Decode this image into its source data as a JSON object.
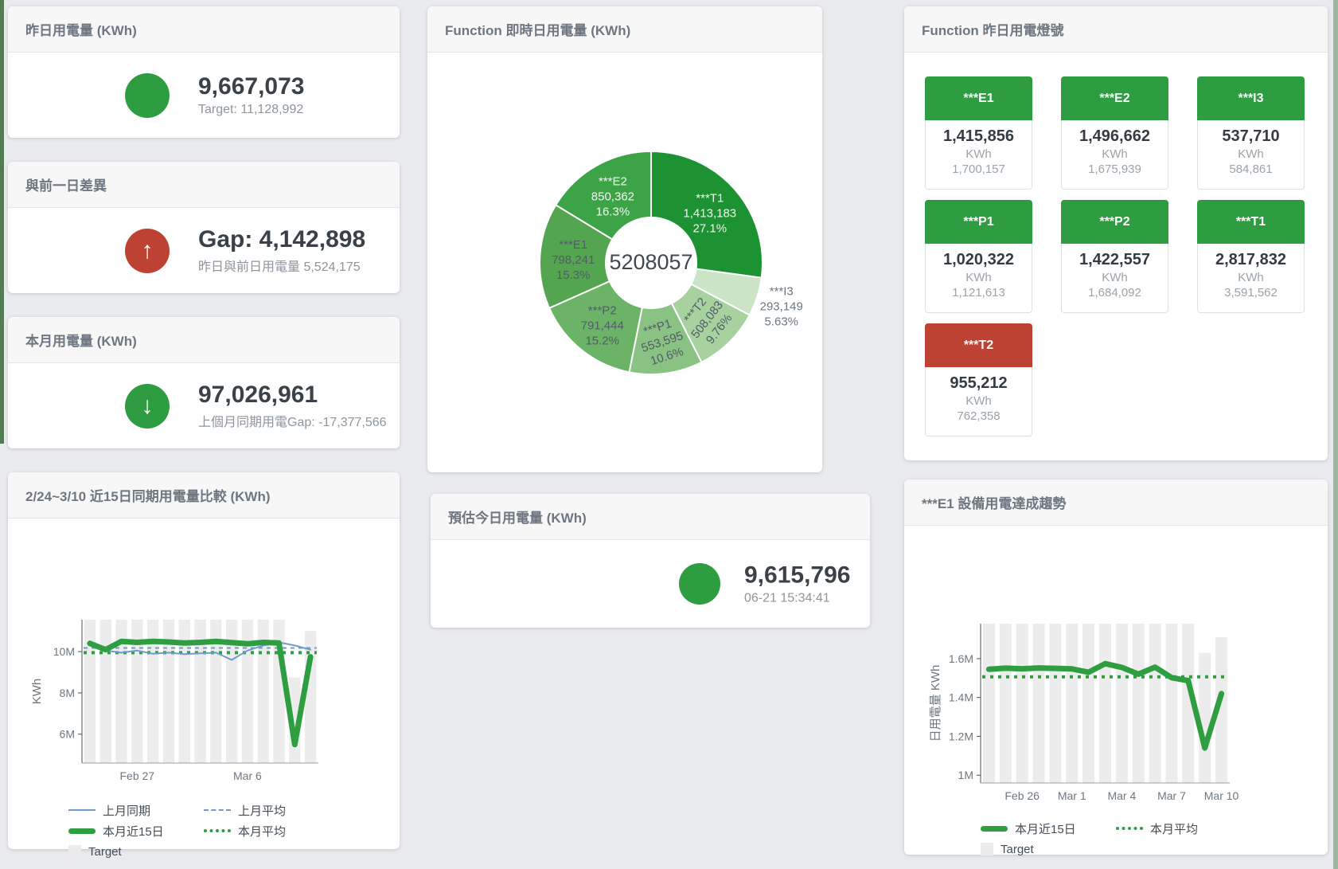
{
  "cards": {
    "yesterday": {
      "title": "昨日用電量 (KWh)",
      "value": "9,667,073",
      "subtitle": "Target: 11,128,992",
      "status_color": "#2e9d41"
    },
    "gap": {
      "title": "與前一日差異",
      "value": "Gap: 4,142,898",
      "subtitle": "昨日與前日用電量 5,524,175",
      "status_color": "#bd4234",
      "arrow": "↑"
    },
    "month": {
      "title": "本月用電量 (KWh)",
      "value": "97,026,961",
      "subtitle": "上個月同期用電Gap: -17,377,566",
      "status_color": "#2e9d41",
      "arrow": "↓"
    },
    "forecast": {
      "title": "預估今日用電量 (KWh)",
      "value": "9,615,796",
      "subtitle": "06-21 15:34:41",
      "status_color": "#2e9d41"
    }
  },
  "lights": {
    "title": "Function 昨日用電燈號",
    "unit": "KWh",
    "tiles": [
      {
        "label": "***E1",
        "value": "1,415,856",
        "unit": "KWh",
        "target": "1,700,157",
        "status": "green"
      },
      {
        "label": "***E2",
        "value": "1,496,662",
        "unit": "KWh",
        "target": "1,675,939",
        "status": "green"
      },
      {
        "label": "***I3",
        "value": "537,710",
        "unit": "KWh",
        "target": "584,861",
        "status": "green"
      },
      {
        "label": "***P1",
        "value": "1,020,322",
        "unit": "KWh",
        "target": "1,121,613",
        "status": "green"
      },
      {
        "label": "***P2",
        "value": "1,422,557",
        "unit": "KWh",
        "target": "1,684,092",
        "status": "green"
      },
      {
        "label": "***T1",
        "value": "2,817,832",
        "unit": "KWh",
        "target": "3,591,562",
        "status": "green"
      },
      {
        "label": "***T2",
        "value": "955,212",
        "unit": "KWh",
        "target": "762,358",
        "status": "red"
      }
    ],
    "status_colors": {
      "green": "#2e9d41",
      "red": "#bd4234"
    }
  },
  "chart_data": [
    {
      "type": "pie",
      "title": "Function 即時日用電量 (KWh)",
      "center_total": "5208057",
      "slices": [
        {
          "name": "***T1",
          "value": 1413183,
          "value_display": "1,413,183",
          "pct": "27.1%",
          "color": "#1d9232",
          "label_color": "#f2f7f2",
          "rotate": 0,
          "outside": false
        },
        {
          "name": "***I3",
          "value": 293149,
          "value_display": "293,149",
          "pct": "5.63%",
          "color": "#cbe5c6",
          "label_color": "#6d7780",
          "rotate": 0,
          "outside": true
        },
        {
          "name": "***T2",
          "value": 508083,
          "value_display": "508,083",
          "pct": "9.76%",
          "color": "#a7d2a0",
          "label_color": "#525c66",
          "rotate": -52,
          "outside": false
        },
        {
          "name": "***P1",
          "value": 553595,
          "value_display": "553,595",
          "pct": "10.6%",
          "color": "#89c283",
          "label_color": "#525c66",
          "rotate": -18,
          "outside": false
        },
        {
          "name": "***P2",
          "value": 791444,
          "value_display": "791,444",
          "pct": "15.2%",
          "color": "#6bb366",
          "label_color": "#525c66",
          "rotate": 0,
          "outside": false
        },
        {
          "name": "***E1",
          "value": 798241,
          "value_display": "798,241",
          "pct": "15.3%",
          "color": "#53a64f",
          "label_color": "#525c66",
          "rotate": 0,
          "outside": false
        },
        {
          "name": "***E2",
          "value": 850362,
          "value_display": "850,362",
          "pct": "16.3%",
          "color": "#3da347",
          "label_color": "#f2f7f2",
          "rotate": 0,
          "outside": false
        }
      ]
    },
    {
      "type": "line",
      "title": "2/24~3/10 近15日同期用電量比較 (KWh)",
      "ylabel": "KWh",
      "x_count": 15,
      "x_ticks": [
        {
          "i": 3,
          "label": "Feb 27"
        },
        {
          "i": 10,
          "label": "Mar 6"
        }
      ],
      "y_ticks": [
        {
          "v": 6000000,
          "label": "6M"
        },
        {
          "v": 8000000,
          "label": "8M"
        },
        {
          "v": 10000000,
          "label": "10M"
        }
      ],
      "y_domain": [
        4600000,
        11550000
      ],
      "bars": {
        "name": "Target",
        "color": "#ececec",
        "values": [
          11550000,
          11550000,
          11550000,
          11550000,
          11550000,
          11550000,
          11550000,
          11550000,
          11550000,
          11550000,
          11550000,
          11550000,
          11550000,
          8750000,
          11000000
        ]
      },
      "series": [
        {
          "name": "上月平均",
          "color": "#6f9bd2",
          "width": 2,
          "dash": "5 5",
          "constant": 10180000
        },
        {
          "name": "本月平均",
          "color": "#2f9e41",
          "width": 4,
          "dash": "4 6",
          "constant": 9950000
        },
        {
          "name": "上月同期",
          "color": "#6f9bd2",
          "width": 2,
          "dash": "",
          "values": [
            10500000,
            10050000,
            9950000,
            10050000,
            9900000,
            9950000,
            9880000,
            9920000,
            9950000,
            9600000,
            10050000,
            10300000,
            10450000,
            10300000,
            10100000
          ]
        },
        {
          "name": "本月近15日",
          "color": "#2f9e41",
          "width": 7,
          "dash": "",
          "values": [
            10400000,
            10100000,
            10500000,
            10450000,
            10500000,
            10470000,
            10420000,
            10450000,
            10500000,
            10440000,
            10380000,
            10450000,
            10420000,
            5500000,
            9750000
          ]
        }
      ],
      "legend": [
        [
          {
            "label": "上月同期",
            "swatch": "sw-line-blue"
          },
          {
            "label": "上月平均",
            "swatch": "sw-dash-blue"
          }
        ],
        [
          {
            "label": "本月近15日",
            "swatch": "sw-thick-green"
          },
          {
            "label": "本月平均",
            "swatch": "sw-dots-green"
          }
        ],
        [
          {
            "label": "Target",
            "swatch": "sw-box-gray"
          }
        ]
      ]
    },
    {
      "type": "line",
      "title": "***E1 設備用電達成趨勢",
      "ylabel": "日用電量 KWh",
      "x_count": 15,
      "x_ticks": [
        {
          "i": 2,
          "label": "Feb 26"
        },
        {
          "i": 5,
          "label": "Mar 1"
        },
        {
          "i": 8,
          "label": "Mar 4"
        },
        {
          "i": 11,
          "label": "Mar 7"
        },
        {
          "i": 14,
          "label": "Mar 10"
        }
      ],
      "y_ticks": [
        {
          "v": 1000000,
          "label": "1M"
        },
        {
          "v": 1200000,
          "label": "1.2M"
        },
        {
          "v": 1400000,
          "label": "1.4M"
        },
        {
          "v": 1600000,
          "label": "1.6M"
        }
      ],
      "y_domain": [
        960000,
        1780000
      ],
      "bars": {
        "name": "Target",
        "color": "#ececec",
        "values": [
          1780000,
          1780000,
          1780000,
          1780000,
          1780000,
          1780000,
          1780000,
          1780000,
          1780000,
          1780000,
          1780000,
          1780000,
          1780000,
          1630000,
          1710000
        ]
      },
      "series": [
        {
          "name": "本月平均",
          "color": "#2f9e41",
          "width": 4,
          "dash": "4 6",
          "constant": 1506000
        },
        {
          "name": "本月近15日",
          "color": "#2f9e41",
          "width": 7,
          "dash": "",
          "values": [
            1545000,
            1551000,
            1548000,
            1552000,
            1550000,
            1547000,
            1530000,
            1574000,
            1555000,
            1520000,
            1556000,
            1502000,
            1487000,
            1140000,
            1420000
          ]
        }
      ],
      "legend": [
        [
          {
            "label": "本月近15日",
            "swatch": "sw-thick-green"
          },
          {
            "label": "本月平均",
            "swatch": "sw-dots-green"
          }
        ],
        [
          {
            "label": "Target",
            "swatch": "sw-box-gray"
          }
        ]
      ]
    }
  ]
}
